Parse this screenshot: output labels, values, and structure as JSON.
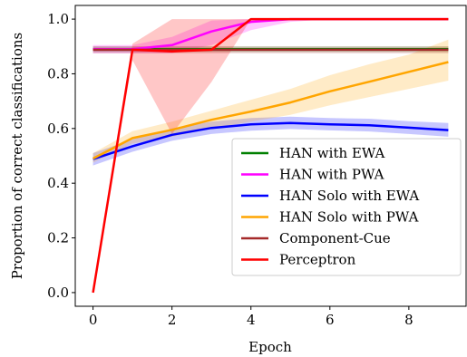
{
  "chart_data": {
    "type": "line",
    "title": "",
    "xlabel": "Epoch",
    "ylabel": "Proportion of correct classifications",
    "xlim": [
      -0.45,
      9.45
    ],
    "ylim": [
      -0.05,
      1.05
    ],
    "xticks": [
      0,
      2,
      4,
      6,
      8
    ],
    "xtick_labels": [
      "0",
      "2",
      "4",
      "6",
      "8"
    ],
    "yticks": [
      0.0,
      0.2,
      0.4,
      0.6,
      0.8,
      1.0
    ],
    "ytick_labels": [
      "0.0",
      "0.2",
      "0.4",
      "0.6",
      "0.8",
      "1.0"
    ],
    "grid": false,
    "legend_position": "lower-right",
    "x": [
      0,
      1,
      2,
      3,
      4,
      5,
      6,
      7,
      8,
      9
    ],
    "series": [
      {
        "name": "HAN with EWA",
        "color": "#008000",
        "values": [
          0.89,
          0.89,
          0.89,
          0.89,
          0.89,
          0.89,
          0.89,
          0.89,
          0.89,
          0.89
        ],
        "lower": [
          0.88,
          0.88,
          0.88,
          0.88,
          0.88,
          0.88,
          0.88,
          0.88,
          0.88,
          0.88
        ],
        "upper": [
          0.9,
          0.9,
          0.9,
          0.9,
          0.9,
          0.9,
          0.9,
          0.9,
          0.9,
          0.9
        ]
      },
      {
        "name": "HAN with PWA",
        "color": "#ff00ff",
        "values": [
          0.89,
          0.89,
          0.905,
          0.955,
          0.99,
          1.0,
          1.0,
          1.0,
          1.0,
          1.0
        ],
        "lower": [
          0.875,
          0.875,
          0.875,
          0.905,
          0.96,
          0.99,
          1.0,
          1.0,
          1.0,
          1.0
        ],
        "upper": [
          0.905,
          0.905,
          0.935,
          0.995,
          1.0,
          1.0,
          1.0,
          1.0,
          1.0,
          1.0
        ]
      },
      {
        "name": "HAN Solo with EWA",
        "color": "#0000ff",
        "values": [
          0.488,
          0.535,
          0.577,
          0.602,
          0.615,
          0.62,
          0.615,
          0.612,
          0.603,
          0.594
        ],
        "lower": [
          0.465,
          0.515,
          0.555,
          0.58,
          0.592,
          0.598,
          0.593,
          0.589,
          0.58,
          0.57
        ],
        "upper": [
          0.51,
          0.56,
          0.6,
          0.625,
          0.638,
          0.643,
          0.638,
          0.636,
          0.627,
          0.62
        ]
      },
      {
        "name": "HAN Solo with PWA",
        "color": "#ffa500",
        "values": [
          0.49,
          0.565,
          0.595,
          0.632,
          0.662,
          0.695,
          0.736,
          0.771,
          0.807,
          0.843
        ],
        "lower": [
          0.475,
          0.545,
          0.57,
          0.6,
          0.625,
          0.65,
          0.685,
          0.715,
          0.745,
          0.775
        ],
        "upper": [
          0.51,
          0.59,
          0.625,
          0.665,
          0.705,
          0.745,
          0.795,
          0.835,
          0.87,
          0.925
        ]
      },
      {
        "name": "Component-Cue",
        "color": "#a52a2a",
        "values": [
          0.888,
          0.888,
          0.888,
          0.888,
          0.888,
          0.888,
          0.888,
          0.888,
          0.888,
          0.888
        ],
        "lower": [
          0.875,
          0.875,
          0.875,
          0.875,
          0.875,
          0.875,
          0.875,
          0.875,
          0.875,
          0.875
        ],
        "upper": [
          0.9,
          0.9,
          0.9,
          0.9,
          0.9,
          0.9,
          0.9,
          0.9,
          0.9,
          0.9
        ]
      },
      {
        "name": "Perceptron",
        "color": "#ff0000",
        "values": [
          0.0,
          0.888,
          0.882,
          0.888,
          1.0,
          1.0,
          1.0,
          1.0,
          1.0,
          1.0
        ],
        "lower": [
          0.0,
          0.85,
          0.58,
          0.77,
          1.0,
          1.0,
          1.0,
          1.0,
          1.0,
          1.0
        ],
        "upper": [
          0.0,
          0.91,
          1.0,
          1.0,
          1.0,
          1.0,
          1.0,
          1.0,
          1.0,
          1.0
        ]
      }
    ]
  }
}
